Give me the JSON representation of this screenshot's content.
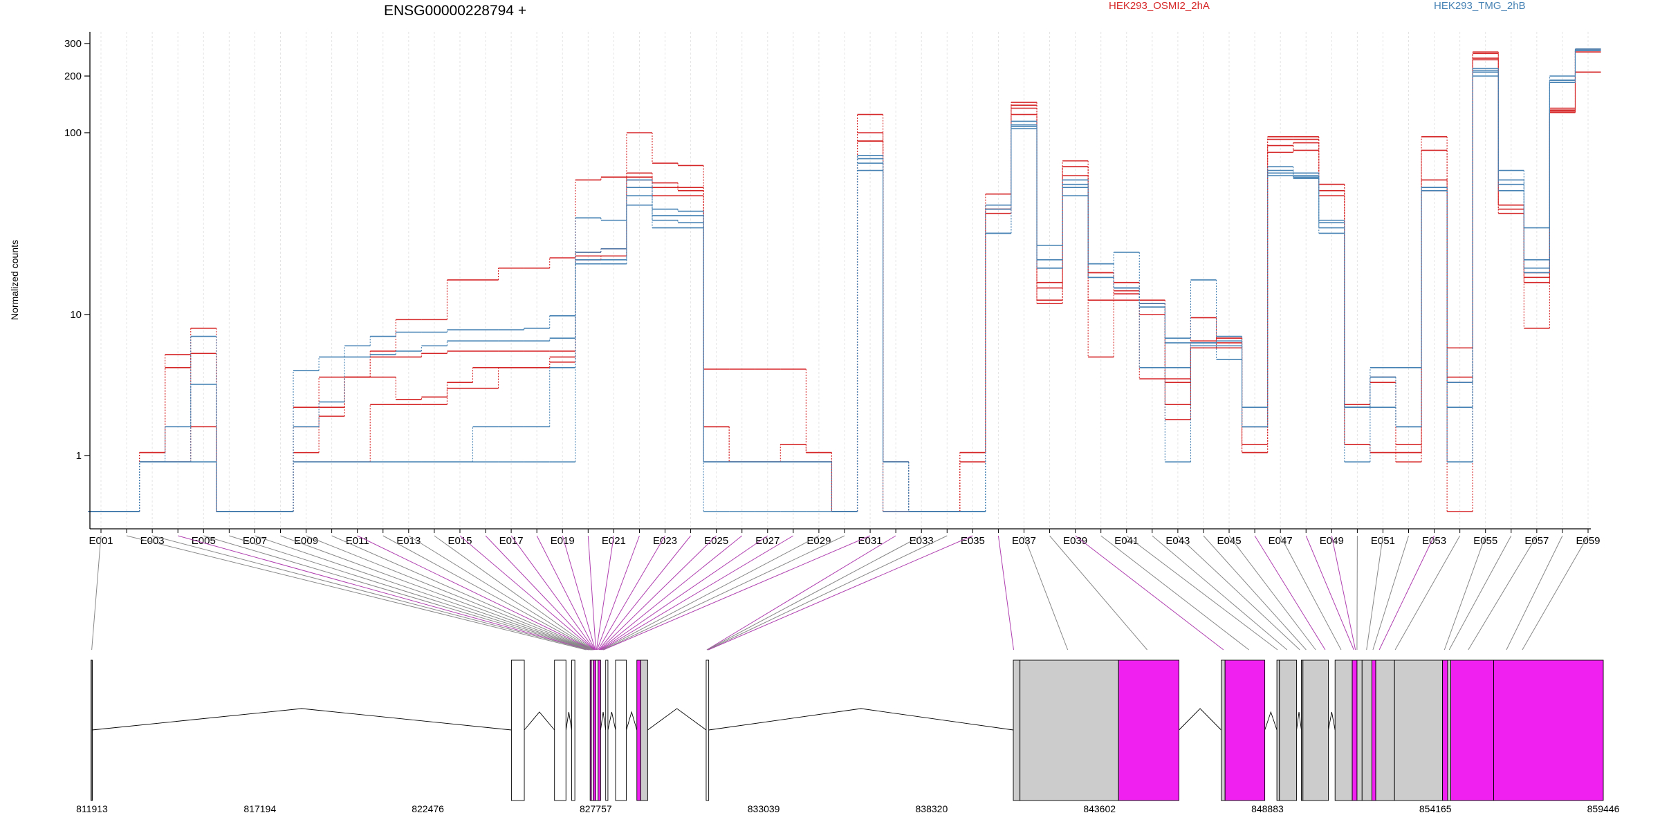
{
  "chart_data": {
    "type": "line",
    "title": "ENSG00000228794 +",
    "ylabel": "Normalized counts",
    "yscale": "log",
    "ylim": [
      0.45,
      380
    ],
    "yticks": [
      1,
      10,
      100,
      200,
      300
    ],
    "ytick_labels": [
      "1",
      "10",
      "100",
      "200",
      "300"
    ],
    "grid": true,
    "legend": [
      {
        "name": "HEK293_OSMI2_2hA",
        "color": "#d62728"
      },
      {
        "name": "HEK293_TMG_2hB",
        "color": "#4682b4"
      }
    ],
    "categories": [
      "E001",
      "E002",
      "E003",
      "E004",
      "E005",
      "E006",
      "E007",
      "E008",
      "E009",
      "E010",
      "E011",
      "E012",
      "E013",
      "E014",
      "E015",
      "E016",
      "E017",
      "E018",
      "E019",
      "E020",
      "E021",
      "E022",
      "E023",
      "E024",
      "E025",
      "E026",
      "E027",
      "E028",
      "E029",
      "E030",
      "E031",
      "E032",
      "E033",
      "E034",
      "E035",
      "E036",
      "E037",
      "E038",
      "E039",
      "E040",
      "E041",
      "E042",
      "E043",
      "E044",
      "E045",
      "E046",
      "E047",
      "E048",
      "E049",
      "E050",
      "E051",
      "E052",
      "E053",
      "E054",
      "E055",
      "E056",
      "E057",
      "E058",
      "E059"
    ],
    "tick_labels": [
      "E001",
      "E003",
      "E005",
      "E007",
      "E009",
      "E011",
      "E013",
      "E015",
      "E017",
      "E019",
      "E021",
      "E023",
      "E025",
      "E027",
      "E029",
      "E031",
      "E033",
      "E035",
      "E037",
      "E039",
      "E041",
      "E043",
      "E045",
      "E047",
      "E049",
      "E051",
      "E053",
      "E055",
      "E057",
      "E059"
    ],
    "series": [
      {
        "color": "#d62728",
        "values": [
          0.48,
          0.48,
          1.05,
          5.2,
          8.0,
          0.48,
          0.48,
          0.48,
          2.2,
          3.6,
          3.6,
          5.5,
          9.2,
          9.2,
          15.5,
          15.5,
          18.0,
          18.0,
          20.5,
          55,
          57,
          100,
          68,
          66,
          4.1,
          4.1,
          4.1,
          4.1,
          1.05,
          0.48,
          125,
          0.48,
          0.48,
          0.48,
          1.05,
          46,
          145,
          12.0,
          65,
          5.0,
          13.5,
          11.5,
          3.3,
          9.5,
          6.3,
          1.05,
          95,
          95,
          52,
          1.2,
          1.05,
          1.05,
          95,
          0.48,
          270,
          38,
          8.0,
          130,
          210
        ]
      },
      {
        "color": "#d62728",
        "values": [
          0.48,
          0.48,
          1.05,
          4.2,
          5.3,
          0.48,
          0.48,
          0.48,
          1.05,
          1.9,
          3.6,
          5.0,
          5.0,
          5.3,
          5.5,
          5.5,
          5.5,
          5.5,
          5.5,
          22,
          23,
          60,
          53,
          48,
          1.6,
          0.92,
          0.92,
          1.2,
          1.05,
          0.48,
          100,
          0.92,
          0.48,
          0.48,
          1.05,
          38,
          140,
          15,
          70,
          12,
          12,
          12,
          2.3,
          6.5,
          6.8,
          1.2,
          92,
          92,
          48,
          1.2,
          1.05,
          0.92,
          80,
          3.3,
          265,
          40,
          15,
          135,
          270
        ]
      },
      {
        "color": "#d62728",
        "values": [
          0.48,
          0.48,
          0.92,
          0.92,
          1.6,
          0.48,
          0.48,
          0.48,
          0.92,
          0.92,
          0.92,
          2.3,
          2.3,
          2.3,
          3.0,
          3.0,
          4.2,
          4.2,
          4.6,
          20,
          21,
          57,
          45,
          45,
          0.92,
          0.92,
          0.92,
          0.92,
          0.92,
          0.48,
          90,
          0.92,
          0.48,
          0.48,
          0.92,
          38,
          125,
          11.5,
          58,
          17,
          15,
          3.5,
          1.8,
          5.8,
          5.8,
          1.05,
          78,
          88,
          45,
          2.2,
          3.3,
          1.2,
          55,
          5.8,
          245,
          36,
          16,
          132,
          280
        ]
      },
      {
        "color": "#d62728",
        "values": [
          0.48,
          0.48,
          0.92,
          0.92,
          5.3,
          0.48,
          0.48,
          0.48,
          1.6,
          2.2,
          3.6,
          3.6,
          2.5,
          2.6,
          3.3,
          4.2,
          4.2,
          4.2,
          5.0,
          21,
          21,
          55,
          50,
          50,
          1.6,
          0.92,
          0.92,
          0.92,
          0.92,
          0.48,
          90,
          0.92,
          0.48,
          0.48,
          0.92,
          36,
          135,
          14,
          65,
          17,
          13,
          10,
          3.5,
          5.8,
          6.8,
          1.6,
          85,
          80,
          52,
          2.3,
          3.6,
          1.05,
          48,
          3.6,
          250,
          40,
          17,
          128,
          270
        ]
      },
      {
        "color": "#4682b4",
        "values": [
          0.48,
          0.48,
          0.92,
          1.6,
          7.0,
          0.48,
          0.48,
          0.48,
          4.0,
          5.0,
          6.0,
          7.0,
          7.5,
          7.5,
          7.8,
          7.8,
          7.8,
          8.0,
          9.8,
          34,
          33,
          45,
          38,
          37,
          0.92,
          0.92,
          0.92,
          0.92,
          0.92,
          0.48,
          72,
          0.92,
          0.48,
          0.48,
          0.48,
          28,
          108,
          24,
          55,
          19,
          22,
          11.5,
          6.8,
          15.5,
          7.0,
          2.2,
          62,
          58,
          32,
          0.92,
          4.2,
          4.2,
          50,
          0.92,
          200,
          62,
          30,
          200,
          280
        ]
      },
      {
        "color": "#4682b4",
        "values": [
          0.48,
          0.48,
          0.92,
          0.92,
          0.92,
          0.48,
          0.48,
          0.48,
          0.92,
          0.92,
          0.92,
          0.92,
          0.92,
          0.92,
          0.92,
          1.6,
          1.6,
          1.6,
          4.2,
          19,
          19,
          40,
          30,
          30,
          0.48,
          0.48,
          0.48,
          0.48,
          0.48,
          0.48,
          62,
          0.48,
          0.48,
          0.48,
          0.48,
          28,
          105,
          18,
          45,
          16,
          14,
          4.2,
          0.92,
          6.3,
          4.8,
          1.6,
          58,
          57,
          28,
          2.2,
          2.2,
          1.6,
          48,
          0.92,
          210,
          48,
          17,
          185,
          275
        ]
      },
      {
        "color": "#4682b4",
        "values": [
          0.48,
          0.48,
          0.92,
          0.92,
          3.2,
          0.48,
          0.48,
          0.48,
          1.6,
          2.4,
          5.0,
          5.2,
          5.5,
          6.0,
          6.5,
          6.5,
          6.5,
          6.5,
          6.8,
          22,
          23,
          50,
          33,
          32,
          0.92,
          0.92,
          0.92,
          0.92,
          0.92,
          0.48,
          68,
          0.92,
          0.48,
          0.48,
          0.48,
          40,
          115,
          18,
          50,
          19,
          14,
          11,
          6.3,
          6.3,
          6.5,
          1.6,
          65,
          60,
          33,
          2.2,
          3.6,
          1.6,
          50,
          2.2,
          220,
          55,
          20,
          190,
          280
        ]
      },
      {
        "color": "#4682b4",
        "values": [
          0.48,
          0.48,
          0.92,
          0.92,
          0.92,
          0.48,
          0.48,
          0.48,
          0.92,
          0.92,
          0.92,
          0.92,
          0.92,
          0.92,
          0.92,
          0.92,
          0.92,
          0.92,
          0.92,
          20,
          20,
          55,
          35,
          35,
          0.92,
          0.92,
          0.92,
          0.92,
          0.92,
          0.48,
          75,
          0.92,
          0.48,
          0.48,
          0.48,
          38,
          110,
          20,
          52,
          16,
          14,
          11,
          4.2,
          6.0,
          6.0,
          1.6,
          60,
          56,
          30,
          2.2,
          3.6,
          1.6,
          50,
          3.3,
          215,
          52,
          18,
          190,
          275
        ]
      }
    ],
    "gene_model": {
      "coordinate_labels": [
        "811913",
        "817194",
        "822476",
        "827757",
        "833039",
        "838320",
        "843602",
        "848883",
        "854165",
        "859446"
      ],
      "start": 811913,
      "end": 859446,
      "exon_colors": {
        "counted": "#cccccc",
        "differential": "#f020f0",
        "unused": "#ffffff"
      }
    }
  }
}
